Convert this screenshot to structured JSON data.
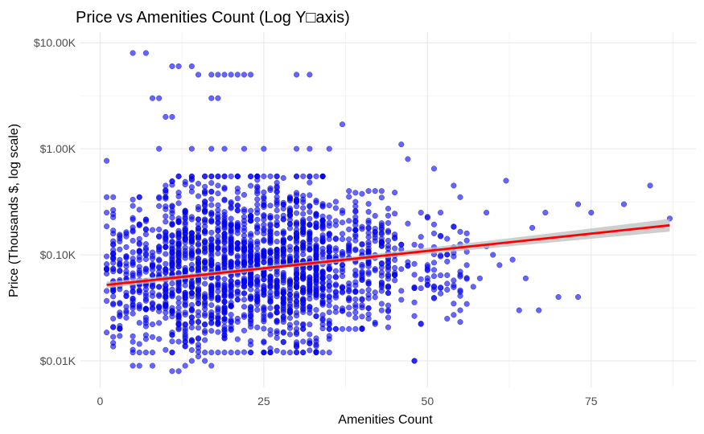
{
  "chart_data": {
    "type": "scatter",
    "title": "Price vs Amenities Count (Log Y□axis)",
    "xlabel": "Amenities Count",
    "ylabel": "Price (Thousands $, log scale)",
    "xlim": [
      -3,
      91
    ],
    "ylim_log10": [
      -2.25,
      1.1
    ],
    "y_scale": "log10",
    "x_ticks": [
      0,
      25,
      50,
      75
    ],
    "x_tick_labels": [
      "0",
      "25",
      "50",
      "75"
    ],
    "y_ticks": [
      0.01,
      0.1,
      1,
      10
    ],
    "y_tick_labels": [
      "$0.01K",
      "$0.10K",
      "$1.00K",
      "$10.00K"
    ],
    "grid": true,
    "point_color": "#0000ff",
    "line_color": "#ff0000",
    "band_color": "#bdbdbd",
    "series": [
      {
        "kind": "points",
        "x": [
          1,
          5,
          7,
          11,
          12,
          14,
          15,
          17,
          18,
          19,
          20,
          21,
          22,
          23,
          30,
          32,
          8,
          9,
          17,
          18,
          10,
          11,
          37,
          1,
          9,
          14,
          17,
          19,
          22,
          25,
          30,
          32,
          35,
          46,
          47,
          51,
          54,
          55,
          59,
          62,
          84,
          73,
          80,
          68,
          75,
          66,
          87,
          60,
          63,
          61,
          65,
          70,
          64,
          73,
          67,
          57,
          58,
          59,
          56,
          55,
          53,
          48,
          3,
          5,
          6,
          8,
          12,
          13,
          14,
          15,
          16,
          17,
          11,
          48,
          25,
          28,
          30,
          31,
          35,
          41,
          44
        ],
        "y": [
          0.77,
          8.0,
          8.0,
          6.0,
          6.0,
          6.0,
          5.0,
          5.0,
          5.0,
          5.0,
          5.0,
          5.0,
          5.0,
          5.0,
          5.0,
          5.0,
          3.0,
          3.0,
          3.0,
          3.0,
          2.0,
          2.0,
          1.7,
          0.25,
          1.0,
          1.0,
          1.0,
          1.0,
          1.0,
          1.0,
          1.0,
          1.0,
          1.0,
          1.1,
          0.8,
          0.65,
          0.45,
          0.35,
          0.25,
          0.5,
          0.45,
          0.3,
          0.3,
          0.25,
          0.25,
          0.18,
          0.22,
          0.1,
          0.09,
          0.08,
          0.06,
          0.04,
          0.03,
          0.04,
          0.03,
          0.05,
          0.06,
          0.12,
          0.08,
          0.03,
          0.025,
          0.01,
          0.02,
          0.009,
          0.009,
          0.009,
          0.008,
          0.009,
          0.01,
          0.011,
          0.01,
          0.009,
          0.008,
          0.01,
          0.012,
          0.015,
          0.015,
          0.02,
          0.02,
          0.025,
          0.03
        ]
      },
      {
        "kind": "dense_cloud",
        "description_ranges": [
          {
            "x_min": 1,
            "x_max": 10,
            "y_min": 0.012,
            "y_max": 0.35,
            "count": 260
          },
          {
            "x_min": 10,
            "x_max": 35,
            "y_min": 0.012,
            "y_max": 0.55,
            "count": 1500
          },
          {
            "x_min": 35,
            "x_max": 45,
            "y_min": 0.02,
            "y_max": 0.4,
            "count": 260
          },
          {
            "x_min": 45,
            "x_max": 56,
            "y_min": 0.02,
            "y_max": 0.25,
            "count": 90
          }
        ]
      },
      {
        "kind": "fit_line",
        "x": [
          1,
          87
        ],
        "y": [
          0.052,
          0.19
        ],
        "ci_halfwidth_log10_start": 0.02,
        "ci_halfwidth_log10_end": 0.06
      }
    ]
  }
}
